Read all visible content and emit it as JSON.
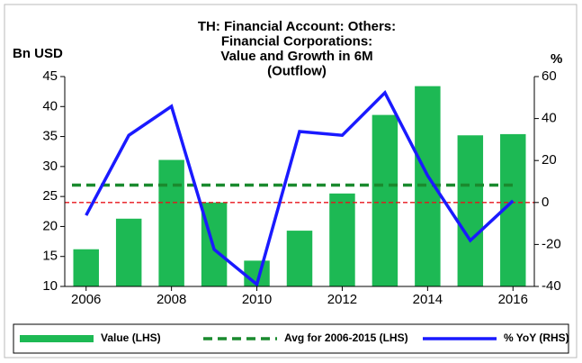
{
  "chart_data": {
    "type": "bar_line_combo",
    "title": [
      "TH: Financial Account: Others:",
      "Financial Corporations:",
      "Value and Growth in 6M",
      "(Outflow)"
    ],
    "y_label": "Bn USD",
    "y2_label": "%",
    "x": [
      2006,
      2007,
      2008,
      2009,
      2010,
      2011,
      2012,
      2013,
      2014,
      2015,
      2016
    ],
    "xlim": [
      2005.5,
      2016.5
    ],
    "xticks": [
      2006,
      2008,
      2010,
      2012,
      2014,
      2016
    ],
    "ylim": [
      10,
      45
    ],
    "yticks": [
      10,
      15,
      20,
      25,
      30,
      35,
      40,
      45
    ],
    "y2lim": [
      -40,
      60
    ],
    "y2ticks": [
      -40,
      -20,
      0,
      20,
      40,
      60
    ],
    "y2_refline": {
      "value": 0,
      "color": "#e8141b"
    },
    "series": [
      {
        "name": "Value (LHS)",
        "type": "bar",
        "color": "#1db954",
        "values": [
          16.2,
          21.3,
          31.1,
          24.0,
          14.3,
          19.3,
          25.5,
          38.6,
          43.4,
          35.2,
          35.4
        ]
      },
      {
        "name": "Avg for 2006-2015 (LHS)",
        "type": "hline",
        "color": "#1a8a2e",
        "value": 26.9
      },
      {
        "name": "% YoY (RHS)",
        "type": "line",
        "axis": "y2",
        "color": "#1a1aff",
        "values": [
          -6.1,
          32.0,
          45.8,
          -22.4,
          -39.0,
          33.8,
          32.0,
          52.3,
          12.8,
          -18.1,
          0.8
        ]
      }
    ]
  }
}
